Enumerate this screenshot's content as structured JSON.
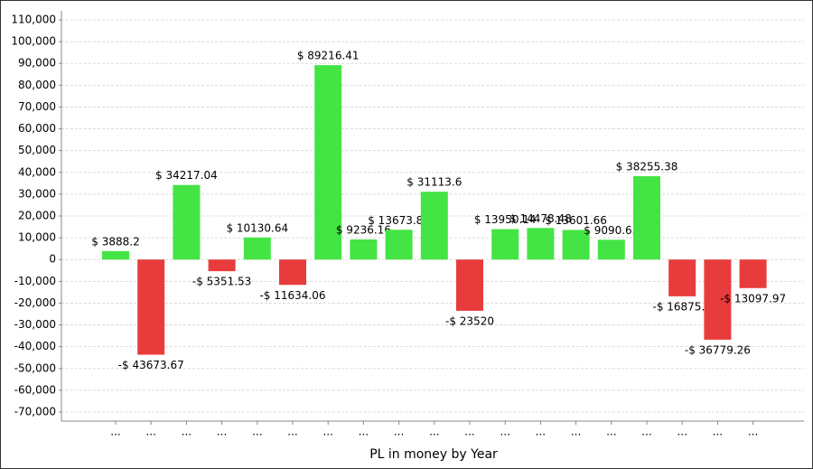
{
  "chart_data": {
    "type": "bar",
    "x_label": "PL in money by Year",
    "categories": [
      "...",
      "...",
      "...",
      "...",
      "...",
      "...",
      "...",
      "...",
      "...",
      "...",
      "...",
      "...",
      "...",
      "...",
      "...",
      "...",
      "...",
      "...",
      "..."
    ],
    "values": [
      3888.2,
      -43673.67,
      34217.04,
      -5351.53,
      10130.64,
      -11634.06,
      89216.41,
      9236.16,
      13673.89,
      31113.6,
      -23520,
      13950.14,
      14478.48,
      13601.66,
      9090.65,
      38255.38,
      -16875.9,
      -36779.26,
      -13097.97
    ],
    "value_labels": [
      "$ 3888.2",
      "-$ 43673.67",
      "$ 34217.04",
      "-$ 5351.53",
      "$ 10130.64",
      "-$ 11634.06",
      "$ 89216.41",
      "$ 9236.16",
      "$ 13673.89",
      "$ 31113.6",
      "-$ 23520",
      "$ 13950.14",
      "$ 14478.48",
      "$ 13601.66",
      "$ 9090.65",
      "$ 38255.38",
      "-$ 16875.9",
      "-$ 36779.26",
      "-$ 13097.97"
    ],
    "colors": [
      "#44e444",
      "#e83c3c",
      "#44e444",
      "#e83c3c",
      "#44e444",
      "#e83c3c",
      "#44e444",
      "#44e444",
      "#44e444",
      "#44e444",
      "#e83c3c",
      "#44e444",
      "#44e444",
      "#44e444",
      "#44e444",
      "#44e444",
      "#e83c3c",
      "#e83c3c",
      "#e83c3c"
    ],
    "ylim": [
      -70000,
      110000
    ],
    "yticks": [
      {
        "value": -70000,
        "label": "-70,000"
      },
      {
        "value": -60000,
        "label": "-60,000"
      },
      {
        "value": -50000,
        "label": "-50,000"
      },
      {
        "value": -40000,
        "label": "-40,000"
      },
      {
        "value": -30000,
        "label": "-30,000"
      },
      {
        "value": -20000,
        "label": "-20,000"
      },
      {
        "value": -10000,
        "label": "-10,000"
      },
      0,
      {
        "value": 10000,
        "label": "10,000"
      },
      {
        "value": 20000,
        "label": "20,000"
      },
      {
        "value": 30000,
        "label": "30,000"
      },
      {
        "value": 40000,
        "label": "40,000"
      },
      {
        "value": 50000,
        "label": "50,000"
      },
      {
        "value": 60000,
        "label": "60,000"
      },
      {
        "value": 70000,
        "label": "70,000"
      },
      {
        "value": 80000,
        "label": "80,000"
      },
      {
        "value": 90000,
        "label": "90,000"
      },
      {
        "value": 100000,
        "label": "100,000"
      },
      {
        "value": 110000,
        "label": "110,000"
      }
    ],
    "grid": true
  }
}
